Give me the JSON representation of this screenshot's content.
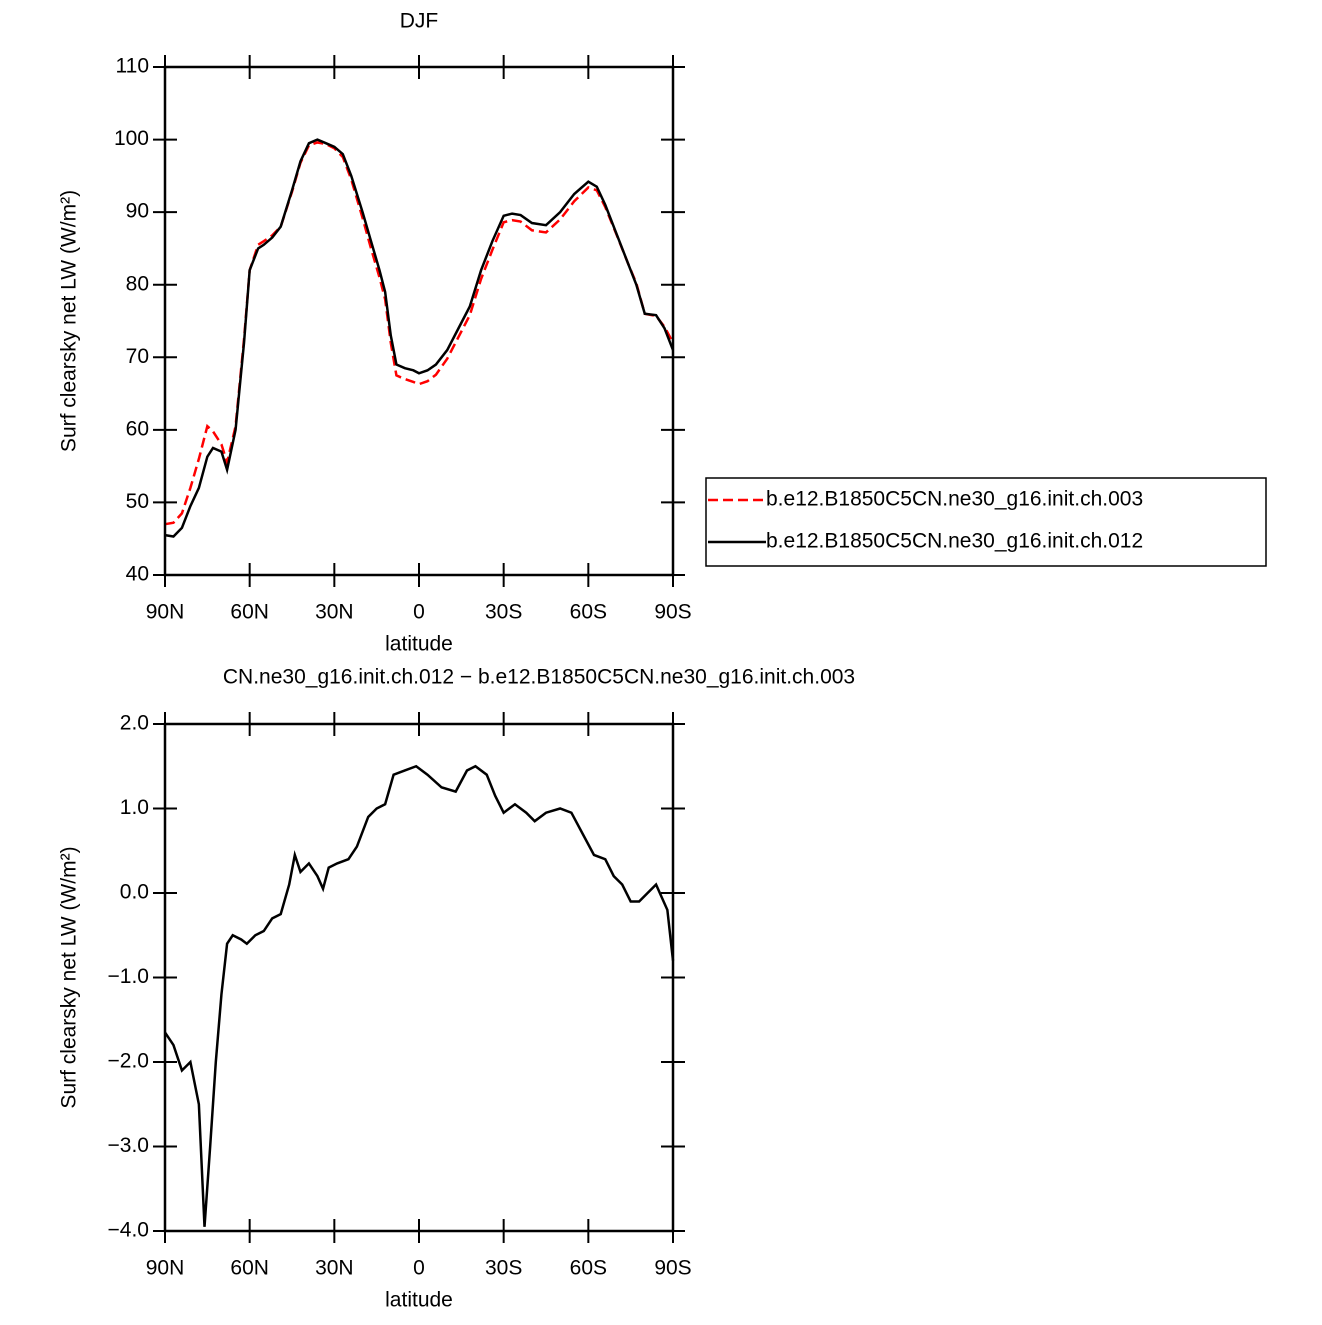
{
  "chart_data": [
    {
      "type": "line",
      "title": "DJF",
      "xlabel": "latitude",
      "ylabel": "Surf clearsky net LW (W/m²)",
      "xlim": [
        90,
        -90
      ],
      "xticks": [
        {
          "value": 90,
          "label": "90N"
        },
        {
          "value": 60,
          "label": "60N"
        },
        {
          "value": 30,
          "label": "30N"
        },
        0,
        {
          "value": -30,
          "label": "30S"
        },
        {
          "value": -60,
          "label": "60S"
        },
        {
          "value": -90,
          "label": "90S"
        }
      ],
      "ylim": [
        40,
        110
      ],
      "yticks": [
        40,
        50,
        60,
        70,
        80,
        90,
        100,
        110
      ],
      "legend": "right",
      "x": [
        90,
        87,
        84,
        81,
        78,
        75,
        73,
        70,
        68,
        65,
        62,
        60,
        57,
        55,
        52,
        49,
        45,
        42,
        39,
        36,
        33,
        30,
        27,
        24,
        20,
        17,
        14,
        12,
        10,
        8,
        5,
        2,
        0,
        -3,
        -6,
        -10,
        -14,
        -18,
        -22,
        -26,
        -30,
        -33,
        -36,
        -40,
        -45,
        -50,
        -55,
        -60,
        -63,
        -66,
        -70,
        -74,
        -77,
        -80,
        -84,
        -87,
        -90
      ],
      "series": [
        {
          "name": "b.e12.B1850C5CN.ne30_g16.init.ch.003",
          "color": "#ff0000",
          "linestyle": "dashed",
          "values": [
            47,
            47.2,
            48.5,
            52,
            56,
            60.5,
            59.8,
            58,
            55.5,
            60.5,
            72.5,
            82,
            85.5,
            86,
            86.8,
            88,
            92.8,
            96.8,
            99.2,
            99.6,
            99.4,
            98.8,
            97.6,
            94.5,
            89.2,
            85,
            81,
            78,
            72,
            67.5,
            67,
            66.6,
            66.3,
            66.7,
            67.6,
            69.8,
            72.8,
            75.8,
            80.8,
            84.8,
            88.6,
            88.9,
            88.7,
            87.5,
            87.2,
            89,
            91.5,
            93.4,
            93,
            90.7,
            86.9,
            83,
            80.2,
            76,
            75.7,
            74.2,
            72
          ]
        },
        {
          "name": "b.e12.B1850C5CN.ne30_g16.init.ch.012",
          "color": "#000000",
          "linestyle": "solid",
          "values": [
            45.5,
            45.3,
            46.5,
            49.5,
            52,
            56.3,
            57.5,
            57,
            54.5,
            60,
            72,
            82,
            85,
            85.5,
            86.5,
            88,
            93,
            97,
            99.5,
            100,
            99.5,
            99,
            98,
            95,
            90,
            86,
            82,
            79,
            73,
            69,
            68.5,
            68.2,
            67.8,
            68.2,
            69,
            71,
            74,
            77,
            82,
            86,
            89.5,
            89.8,
            89.6,
            88.5,
            88.2,
            90,
            92.5,
            94.2,
            93.5,
            91,
            87,
            83,
            80,
            76,
            75.8,
            74,
            71
          ]
        }
      ]
    },
    {
      "type": "line",
      "title": "CN.ne30_g16.init.ch.012 − b.e12.B1850C5CN.ne30_g16.init.ch.003",
      "xlabel": "latitude",
      "ylabel": "Surf clearsky net LW (W/m²)",
      "xlim": [
        90,
        -90
      ],
      "xticks": [
        {
          "value": 90,
          "label": "90N"
        },
        {
          "value": 60,
          "label": "60N"
        },
        {
          "value": 30,
          "label": "30N"
        },
        0,
        {
          "value": -30,
          "label": "30S"
        },
        {
          "value": -60,
          "label": "60S"
        },
        {
          "value": -90,
          "label": "90S"
        }
      ],
      "ylim": [
        -4,
        2
      ],
      "yticks": [
        {
          "value": -4,
          "label": "−4.0"
        },
        {
          "value": -3,
          "label": "−3.0"
        },
        {
          "value": -2,
          "label": "−2.0"
        },
        {
          "value": -1,
          "label": "−1.0"
        },
        {
          "value": 0,
          "label": "0.0"
        },
        {
          "value": 1,
          "label": "1.0"
        },
        {
          "value": 2,
          "label": "2.0"
        }
      ],
      "x": [
        90,
        87,
        84,
        81,
        78,
        76,
        74,
        72,
        70,
        68,
        66,
        63,
        61,
        58,
        55,
        52,
        49,
        46,
        44,
        42,
        39,
        36,
        34,
        32,
        29,
        25,
        22,
        18,
        15,
        12,
        9,
        5,
        1,
        -3,
        -8,
        -13,
        -17,
        -20,
        -24,
        -27,
        -30,
        -34,
        -38,
        -41,
        -45,
        -50,
        -54,
        -58,
        -62,
        -66,
        -69,
        -72,
        -75,
        -78,
        -81,
        -84,
        -86,
        -88,
        -90
      ],
      "series": [
        {
          "color": "#000000",
          "linestyle": "solid",
          "values": [
            -1.65,
            -1.8,
            -2.1,
            -2.0,
            -2.5,
            -3.95,
            -3.0,
            -2.0,
            -1.2,
            -0.6,
            -0.5,
            -0.55,
            -0.6,
            -0.5,
            -0.45,
            -0.3,
            -0.25,
            0.1,
            0.45,
            0.25,
            0.35,
            0.2,
            0.05,
            0.3,
            0.35,
            0.4,
            0.55,
            0.9,
            1.0,
            1.05,
            1.4,
            1.45,
            1.5,
            1.4,
            1.25,
            1.2,
            1.45,
            1.5,
            1.4,
            1.15,
            0.95,
            1.05,
            0.95,
            0.85,
            0.95,
            1.0,
            0.95,
            0.7,
            0.45,
            0.4,
            0.2,
            0.1,
            -0.1,
            -0.1,
            0.0,
            0.1,
            -0.05,
            -0.2,
            -0.8
          ]
        }
      ]
    }
  ]
}
